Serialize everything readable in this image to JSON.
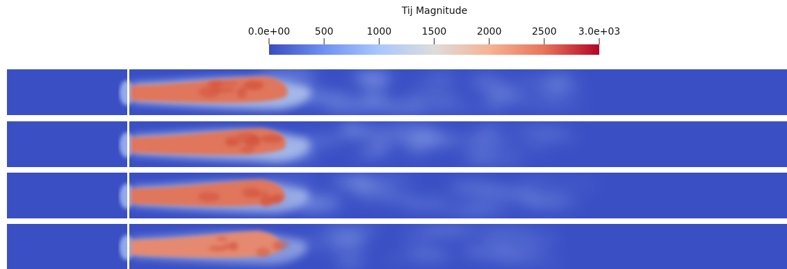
{
  "colorbar": {
    "title": "Tij Magnitude",
    "min": 0,
    "max": 3000,
    "ticks": [
      {
        "value": 0,
        "label": "0.0e+00"
      },
      {
        "value": 500,
        "label": "500"
      },
      {
        "value": 1000,
        "label": "1000"
      },
      {
        "value": 1500,
        "label": "1500"
      },
      {
        "value": 2000,
        "label": "2000"
      },
      {
        "value": 2500,
        "label": "2500"
      },
      {
        "value": 3000,
        "label": "3.0e+03"
      }
    ],
    "colors": [
      "#3b4cc0",
      "#6f91f2",
      "#aac7fd",
      "#dddcdc",
      "#f6b394",
      "#e7745b",
      "#b40426"
    ]
  },
  "panels": [
    {
      "name": "panel-1",
      "jet_intensity": 1.0
    },
    {
      "name": "panel-2",
      "jet_intensity": 0.92
    },
    {
      "name": "panel-3",
      "jet_intensity": 0.85
    },
    {
      "name": "panel-4",
      "jet_intensity": 0.7
    }
  ],
  "colors": {
    "background_field": "#3a4fc4",
    "jet_core": "#e0765c",
    "jet_hot": "#d4553f",
    "mixing": "#b5c8ef",
    "separator": "#ffffff"
  }
}
